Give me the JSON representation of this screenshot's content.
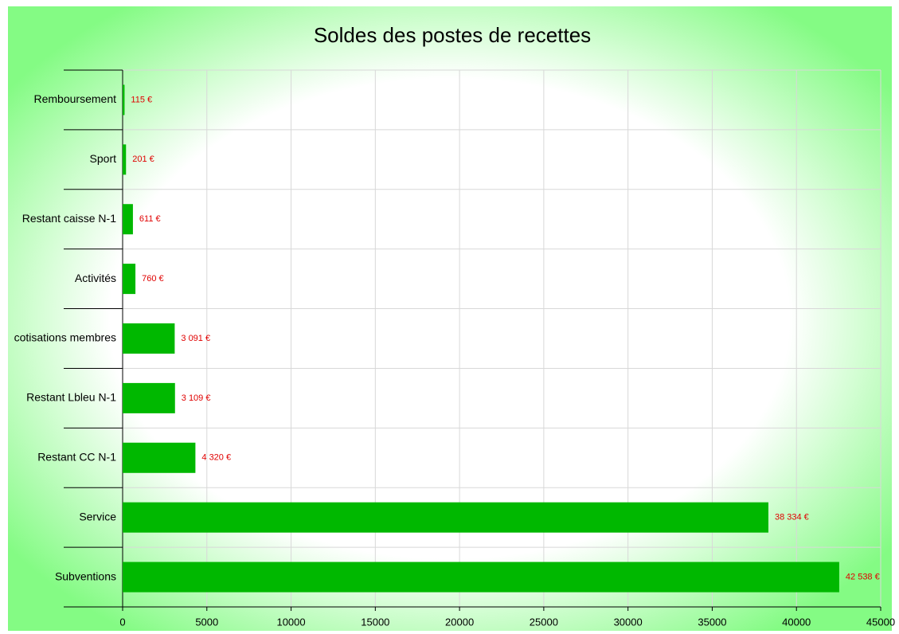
{
  "chart_data": {
    "type": "hbar",
    "title": "Soldes des postes de recettes",
    "categories": [
      "Remboursement",
      "Sport",
      "Restant caisse N-1",
      "Activités",
      "cotisations membres",
      "Restant Lbleu N-1",
      "Restant CC N-1",
      "Service",
      "Subventions"
    ],
    "values": [
      115,
      201,
      611,
      760,
      3091,
      3109,
      4320,
      38334,
      42538
    ],
    "value_labels": [
      "115 €",
      "201 €",
      "611 €",
      "760 €",
      "3 091 €",
      "3 109 €",
      "4 320 €",
      "38 334 €",
      "42 538 €"
    ],
    "color": "#00b800",
    "label_color": "#e00000",
    "xlim": [
      0,
      45000
    ],
    "xticks": [
      0,
      5000,
      10000,
      15000,
      20000,
      25000,
      30000,
      35000,
      40000,
      45000
    ],
    "grid": true
  }
}
